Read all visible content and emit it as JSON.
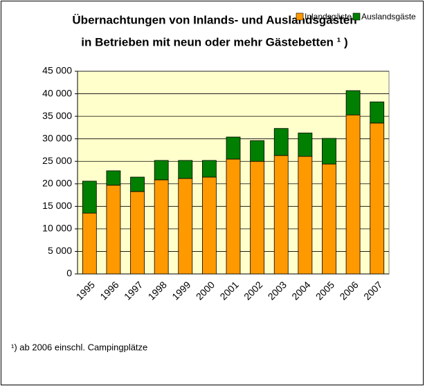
{
  "chart_data": {
    "type": "stacked_bar",
    "title": [
      "Übernachtungen von Inlands- und Auslandsgästen",
      "in Betrieben mit neun oder mehr Gästebetten ¹ )"
    ],
    "categories": [
      "1995",
      "1996",
      "1997",
      "1998",
      "1999",
      "2000",
      "2001",
      "2002",
      "2003",
      "2004",
      "2005",
      "2006",
      "2007"
    ],
    "series": [
      {
        "name": "Inlandsgäste",
        "color": "#FF9900",
        "values": [
          13500,
          19700,
          18300,
          20900,
          21200,
          21500,
          25500,
          25000,
          26300,
          26100,
          24400,
          35300,
          33500
        ]
      },
      {
        "name": "Auslandsgäste",
        "color": "#007F00",
        "values": [
          7100,
          3200,
          3200,
          4300,
          4000,
          3700,
          4900,
          4600,
          6000,
          5200,
          5700,
          5400,
          4700
        ]
      }
    ],
    "ylim": [
      0,
      45000
    ],
    "yticks": [
      0,
      {
        "value": 5000,
        "label": "5 000"
      },
      {
        "value": 10000,
        "label": "10 000"
      },
      {
        "value": 15000,
        "label": "15 000"
      },
      {
        "value": 20000,
        "label": "20 000"
      },
      {
        "value": 25000,
        "label": "25 000"
      },
      {
        "value": 30000,
        "label": "30 000"
      },
      {
        "value": 35000,
        "label": "35 000"
      },
      {
        "value": 40000,
        "label": "40 000"
      },
      {
        "value": 45000,
        "label": "45 000"
      }
    ],
    "grid": true,
    "legend": "top-right",
    "footnote": "¹) ab 2006 einschl. Campingplätze"
  }
}
